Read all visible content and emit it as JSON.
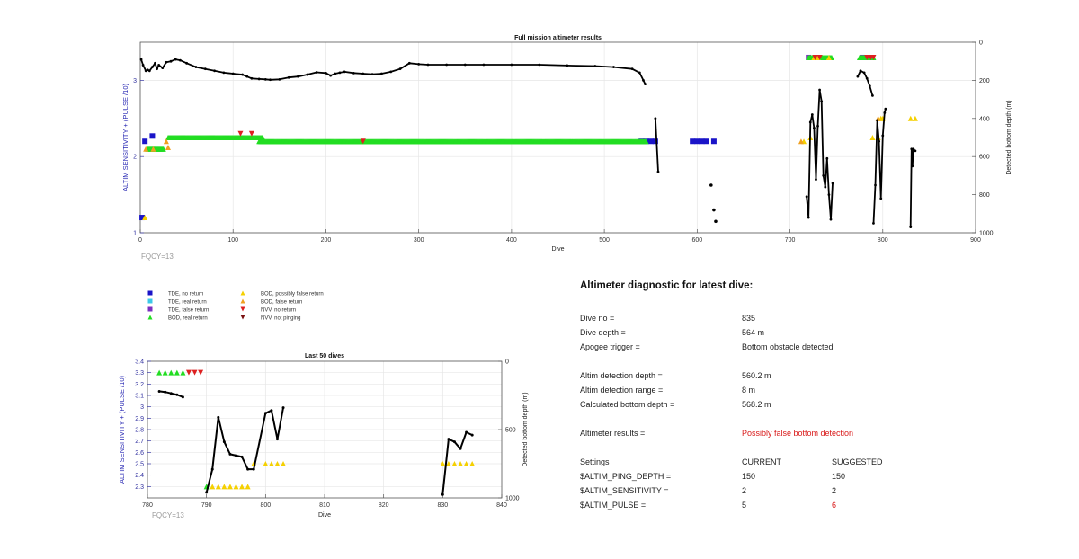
{
  "legend": [
    {
      "label": "TDE, no return",
      "marker": "square",
      "color": "#1a14c8"
    },
    {
      "label": "TDE, real return",
      "marker": "square",
      "color": "#3cc8e8"
    },
    {
      "label": "TDE, false return",
      "marker": "square",
      "color": "#7a2fc0"
    },
    {
      "label": "BOD, real return",
      "marker": "triangle-up",
      "color": "#22dd22"
    },
    {
      "label": "BOD, possibly false return",
      "marker": "triangle-up",
      "color": "#f5d000"
    },
    {
      "label": "BOD, false return",
      "marker": "triangle-up",
      "color": "#f0a020"
    },
    {
      "label": "NVV, no return",
      "marker": "triangle-down",
      "color": "#dd2020"
    },
    {
      "label": "NVV, not pinging",
      "marker": "triangle-down",
      "color": "#7a1010"
    }
  ],
  "chart_data": [
    {
      "type": "scatter",
      "title": "Full mission altimeter results",
      "xlabel": "Dive",
      "ylabel": "ALTIM SENSITIVITY + (PULSE /10)",
      "y2label": "Detected bottom depth (m)",
      "annotation": "FQCY=13",
      "xlim": [
        0,
        900
      ],
      "ylim": [
        1,
        3.5
      ],
      "y2lim": [
        0,
        1000
      ],
      "y2_reversed": true,
      "xticks": [
        "0",
        "100",
        "200",
        "300",
        "400",
        "500",
        "600",
        "700",
        "800",
        "900"
      ],
      "yticks": [
        "1",
        "2",
        "3"
      ],
      "y2ticks": [
        "0",
        "200",
        "400",
        "600",
        "800",
        "1000"
      ],
      "series": [
        {
          "marker": "square",
          "color": "#1a14c8",
          "points": [
            [
              2,
              1.2
            ],
            [
              5,
              2.2
            ],
            [
              13,
              2.27
            ],
            [
              540,
              2.2
            ],
            [
              545,
              2.2
            ],
            [
              550,
              2.2
            ],
            [
              555,
              2.2
            ],
            [
              595,
              2.2
            ],
            [
              600,
              2.2
            ],
            [
              605,
              2.2
            ],
            [
              610,
              2.2
            ],
            [
              618,
              2.2
            ]
          ]
        },
        {
          "marker": "square",
          "color": "#7a2fc0",
          "points": [
            [
              720,
              3.3
            ],
            [
              778,
              3.3
            ]
          ]
        },
        {
          "marker": "triangle-up",
          "color": "#22dd22",
          "runs": [
            [
              8,
              25,
              2.1,
              1
            ],
            [
              30,
              132,
              2.25,
              1
            ],
            [
              128,
              545,
              2.2,
              1
            ],
            [
              720,
              745,
              3.3,
              1
            ],
            [
              775,
              790,
              3.3,
              1
            ]
          ]
        },
        {
          "marker": "triangle-up",
          "color": "#f5d000",
          "points": [
            [
              5,
              1.2
            ],
            [
              715,
              2.2
            ],
            [
              722,
              2.25
            ],
            [
              726,
              3.3
            ],
            [
              730,
              3.3
            ],
            [
              742,
              3.3
            ],
            [
              789,
              2.25
            ],
            [
              795,
              2.25
            ],
            [
              798,
              2.5
            ],
            [
              800,
              2.5
            ],
            [
              830,
              2.5
            ],
            [
              835,
              2.5
            ]
          ]
        },
        {
          "marker": "triangle-up",
          "color": "#f0a020",
          "points": [
            [
              6,
              2.1
            ],
            [
              14,
              2.1
            ],
            [
              28,
              2.2
            ],
            [
              30,
              2.12
            ],
            [
              712,
              2.2
            ],
            [
              795,
              2.5
            ]
          ]
        },
        {
          "marker": "triangle-down",
          "color": "#dd2020",
          "points": [
            [
              108,
              2.3
            ],
            [
              120,
              2.3
            ],
            [
              240,
              2.2
            ],
            [
              727,
              3.3
            ],
            [
              732,
              3.3
            ],
            [
              783,
              3.3
            ],
            [
              787,
              3.3
            ],
            [
              790,
              3.3
            ]
          ]
        }
      ],
      "depth_line": {
        "color": "#000000",
        "segments": [
          [
            [
              1,
              90
            ],
            [
              3,
              120
            ],
            [
              6,
              150
            ],
            [
              8,
              145
            ],
            [
              10,
              150
            ],
            [
              13,
              130
            ],
            [
              16,
              110
            ],
            [
              18,
              140
            ],
            [
              20,
              120
            ],
            [
              24,
              135
            ],
            [
              28,
              105
            ],
            [
              33,
              100
            ],
            [
              38,
              90
            ],
            [
              43,
              95
            ],
            [
              50,
              110
            ],
            [
              60,
              130
            ],
            [
              70,
              140
            ],
            [
              80,
              150
            ],
            [
              90,
              160
            ],
            [
              100,
              165
            ],
            [
              110,
              170
            ],
            [
              115,
              180
            ],
            [
              120,
              190
            ],
            [
              128,
              193
            ],
            [
              135,
              195
            ],
            [
              140,
              197
            ],
            [
              150,
              195
            ],
            [
              160,
              185
            ],
            [
              170,
              180
            ],
            [
              180,
              170
            ],
            [
              190,
              158
            ],
            [
              200,
              162
            ],
            [
              205,
              175
            ],
            [
              210,
              165
            ],
            [
              215,
              160
            ],
            [
              220,
              155
            ],
            [
              230,
              162
            ],
            [
              240,
              165
            ],
            [
              250,
              168
            ],
            [
              260,
              165
            ],
            [
              270,
              155
            ],
            [
              280,
              140
            ],
            [
              290,
              110
            ],
            [
              300,
              115
            ],
            [
              310,
              118
            ],
            [
              330,
              118
            ],
            [
              350,
              118
            ],
            [
              370,
              118
            ],
            [
              400,
              118
            ],
            [
              430,
              118
            ],
            [
              460,
              122
            ],
            [
              490,
              125
            ],
            [
              510,
              130
            ],
            [
              530,
              140
            ],
            [
              538,
              160
            ],
            [
              542,
              200
            ],
            [
              544,
              220
            ]
          ],
          [
            [
              555,
              400
            ],
            [
              558,
              680
            ]
          ],
          [
            [
              718,
              810
            ],
            [
              720,
              920
            ],
            [
              722,
              420
            ],
            [
              724,
              380
            ],
            [
              726,
              450
            ],
            [
              728,
              720
            ],
            [
              730,
              440
            ],
            [
              732,
              250
            ],
            [
              734,
              310
            ],
            [
              736,
              700
            ],
            [
              738,
              760
            ],
            [
              740,
              610
            ],
            [
              742,
              800
            ],
            [
              744,
              930
            ],
            [
              746,
              740
            ]
          ],
          [
            [
              773,
              180
            ],
            [
              776,
              150
            ],
            [
              780,
              160
            ],
            [
              783,
              190
            ],
            [
              786,
              230
            ],
            [
              789,
              280
            ]
          ],
          [
            [
              790,
              950
            ],
            [
              792,
              750
            ],
            [
              794,
              410
            ],
            [
              796,
              520
            ],
            [
              798,
              820
            ],
            [
              800,
              490
            ],
            [
              802,
              370
            ],
            [
              803,
              350
            ]
          ],
          [
            [
              830,
              970
            ],
            [
              831,
              560
            ],
            [
              832,
              650
            ],
            [
              833,
              560
            ],
            [
              835,
              570
            ]
          ]
        ],
        "points": [
          [
            615,
            750
          ],
          [
            618,
            880
          ],
          [
            620,
            940
          ]
        ]
      }
    },
    {
      "type": "scatter",
      "title": "Last 50 dives",
      "xlabel": "Dive",
      "ylabel": "ALTIM SENSITIVITY + (PULSE /10)",
      "y2label": "Detected bottom depth (m)",
      "annotation": "FQCY=13",
      "xlim": [
        780,
        840
      ],
      "ylim": [
        2.2,
        3.4
      ],
      "y2lim": [
        0,
        1000
      ],
      "y2_reversed": true,
      "xticks": [
        "780",
        "790",
        "800",
        "810",
        "820",
        "830",
        "840"
      ],
      "yticks": [
        "2.3",
        "2.4",
        "2.5",
        "2.6",
        "2.7",
        "2.8",
        "2.9",
        "3",
        "3.1",
        "3.2",
        "3.3",
        "3.4"
      ],
      "y2ticks": [
        "0",
        "500",
        "1000"
      ],
      "series": [
        {
          "marker": "triangle-up",
          "color": "#22dd22",
          "points": [
            [
              782,
              3.3
            ],
            [
              783,
              3.3
            ],
            [
              784,
              3.3
            ],
            [
              785,
              3.3
            ],
            [
              786,
              3.3
            ],
            [
              790,
              2.3
            ]
          ]
        },
        {
          "marker": "triangle-down",
          "color": "#dd2020",
          "points": [
            [
              787,
              3.3
            ],
            [
              788,
              3.3
            ],
            [
              789,
              3.3
            ]
          ]
        },
        {
          "marker": "triangle-up",
          "color": "#f5d000",
          "points": [
            [
              791,
              2.3
            ],
            [
              792,
              2.3
            ],
            [
              793,
              2.3
            ],
            [
              794,
              2.3
            ],
            [
              795,
              2.3
            ],
            [
              796,
              2.3
            ],
            [
              797,
              2.3
            ],
            [
              798,
              2.5
            ],
            [
              800,
              2.5
            ],
            [
              801,
              2.5
            ],
            [
              802,
              2.5
            ],
            [
              803,
              2.5
            ],
            [
              830,
              2.5
            ],
            [
              831,
              2.5
            ],
            [
              832,
              2.5
            ],
            [
              833,
              2.5
            ],
            [
              834,
              2.5
            ],
            [
              835,
              2.5
            ]
          ]
        }
      ],
      "depth_line": {
        "color": "#000000",
        "segments": [
          [
            [
              782,
              220
            ],
            [
              783,
              225
            ],
            [
              784,
              235
            ],
            [
              785,
              245
            ],
            [
              786,
              262
            ]
          ],
          [
            [
              790,
              960
            ],
            [
              791,
              790
            ],
            [
              792,
              410
            ],
            [
              793,
              590
            ],
            [
              794,
              680
            ],
            [
              795,
              690
            ],
            [
              796,
              700
            ],
            [
              797,
              790
            ],
            [
              798,
              790
            ],
            [
              800,
              380
            ],
            [
              801,
              360
            ],
            [
              802,
              570
            ],
            [
              803,
              340
            ]
          ],
          [
            [
              830,
              975
            ],
            [
              831,
              570
            ],
            [
              832,
              590
            ],
            [
              833,
              640
            ],
            [
              834,
              520
            ],
            [
              835,
              540
            ]
          ]
        ],
        "points": []
      }
    }
  ],
  "diagnostic": {
    "title": "Altimeter diagnostic for latest dive:",
    "rows": [
      {
        "key": "Dive no =",
        "value": "835"
      },
      {
        "key": "Dive depth =",
        "value": "564 m"
      },
      {
        "key": "Apogee trigger =",
        "value": "Bottom obstacle detected"
      }
    ],
    "rows2": [
      {
        "key": "Altim detection depth =",
        "value": "560.2 m"
      },
      {
        "key": "Altim detection range =",
        "value": "8 m"
      },
      {
        "key": "Calculated bottom depth =",
        "value": "568.2 m"
      }
    ],
    "results_key": "Altimeter results =",
    "results_value": "Possibly false bottom detection",
    "settings_header": {
      "key": "Settings",
      "current": "CURRENT",
      "suggested": "SUGGESTED"
    },
    "settings": [
      {
        "key": "$ALTIM_PING_DEPTH =",
        "current": "150",
        "suggested": "150",
        "changed": false
      },
      {
        "key": "$ALTIM_SENSITIVITY =",
        "current": "2",
        "suggested": "2",
        "changed": false
      },
      {
        "key": "$ALTIM_PULSE =",
        "current": "5",
        "suggested": "6",
        "changed": true
      }
    ],
    "highlight_color": "#d91a1a"
  }
}
